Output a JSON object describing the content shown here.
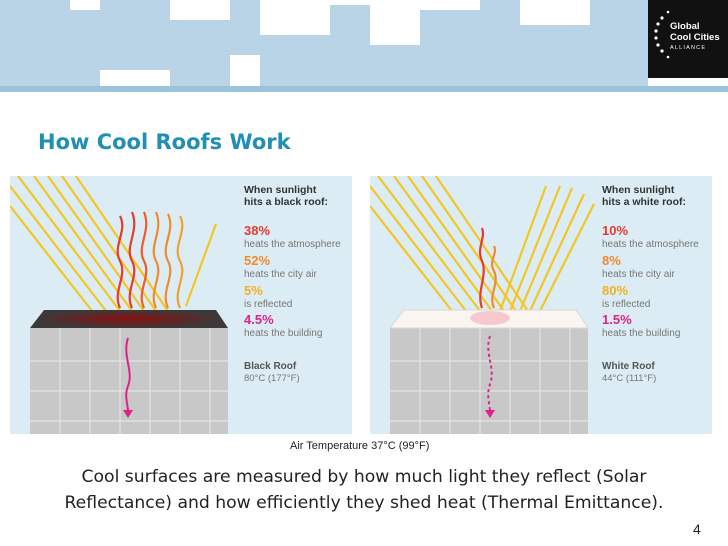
{
  "header": {
    "logo": {
      "line1": "Global",
      "line2": "Cool Cities",
      "line3": "ALLIANCE"
    }
  },
  "title": "How Cool Roofs Work",
  "panels": [
    {
      "heading_line1": "When sunlight",
      "heading_line2": "hits a black roof:",
      "stats": [
        {
          "value": "38%",
          "label": "heats the atmosphere",
          "color": "#e43b2c"
        },
        {
          "value": "52%",
          "label": "heats the city air",
          "color": "#f08a2c"
        },
        {
          "value": "5%",
          "label": "is reflected",
          "color": "#f2b01e"
        },
        {
          "value": "4.5%",
          "label": "heats the building",
          "color": "#e0218a"
        }
      ],
      "roof_name": "Black Roof",
      "roof_temp": "80°C (177°F)"
    },
    {
      "heading_line1": "When sunlight",
      "heading_line2": "hits a white roof:",
      "stats": [
        {
          "value": "10%",
          "label": "heats the atmosphere",
          "color": "#e43b2c"
        },
        {
          "value": "8%",
          "label": "heats the city air",
          "color": "#f08a2c"
        },
        {
          "value": "80%",
          "label": "is reflected",
          "color": "#f2b01e"
        },
        {
          "value": "1.5%",
          "label": "heats the building",
          "color": "#e0218a"
        }
      ],
      "roof_name": "White Roof",
      "roof_temp": "44°C (111°F)"
    }
  ],
  "air_temperature": "Air Temperature 37°C (99°F)",
  "caption": {
    "line1": "Cool surfaces are measured by how much light they reflect (Solar",
    "line2": "Reflectance) and how efficiently they shed heat (Thermal Emittance)."
  },
  "page_number": "4",
  "colors": {
    "title": "#1f8fb5",
    "panel_bg": "#dcecf4",
    "sunlight": "#f3c623",
    "building": "#c8c8c8",
    "skyline": "#b9d4e6"
  }
}
